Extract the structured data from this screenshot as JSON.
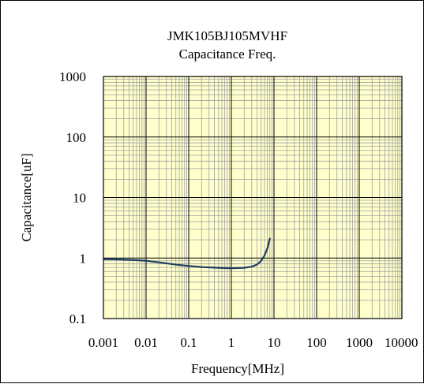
{
  "chart_data": {
    "type": "line",
    "title": "JMK105BJ105MVHF",
    "subtitle": "Capacitance Freq.",
    "xlabel": "Frequency[MHz]",
    "ylabel": "Capacitance[uF]",
    "x_scale": "log",
    "y_scale": "log",
    "xlim": [
      0.001,
      10000
    ],
    "ylim": [
      0.1,
      1000
    ],
    "x_ticks": [
      "0.001",
      "0.01",
      "0.1",
      "1",
      "10",
      "100",
      "1000",
      "10000"
    ],
    "y_ticks": [
      "0.1",
      "1",
      "10",
      "100",
      "1000"
    ],
    "grid": true,
    "plot_background": "#ffffcc",
    "grid_color": "#a0a0a0",
    "series": [
      {
        "color": "#1f3b5e",
        "x": [
          0.001,
          0.002,
          0.005,
          0.01,
          0.02,
          0.05,
          0.1,
          0.2,
          0.5,
          1,
          2,
          3,
          4,
          5,
          6,
          7,
          8
        ],
        "y": [
          0.96,
          0.95,
          0.93,
          0.9,
          0.85,
          0.78,
          0.74,
          0.71,
          0.69,
          0.68,
          0.69,
          0.72,
          0.78,
          0.9,
          1.1,
          1.45,
          2.1
        ]
      }
    ]
  }
}
